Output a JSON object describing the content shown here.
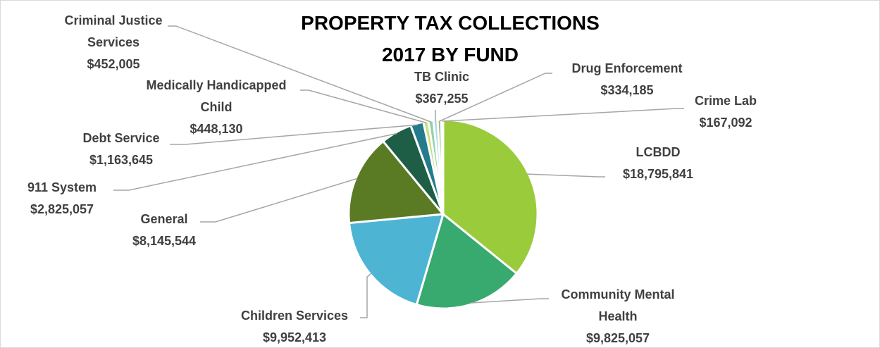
{
  "chart_data": {
    "type": "pie",
    "title": "PROPERTY TAX COLLECTIONS",
    "subtitle": "2017 BY FUND",
    "slices": [
      {
        "name": "LCBDD",
        "value": 18795841,
        "display": "$18,795,841",
        "color": "#9acb3b",
        "label_lines": [
          "LCBDD"
        ]
      },
      {
        "name": "Community Mental Health",
        "value": 9825057,
        "display": "$9,825,057",
        "color": "#38a96f",
        "label_lines": [
          "Community Mental",
          "Health"
        ]
      },
      {
        "name": "Children Services",
        "value": 9952413,
        "display": "$9,952,413",
        "color": "#4db4d3",
        "label_lines": [
          "Children Services"
        ]
      },
      {
        "name": "General",
        "value": 8145544,
        "display": "$8,145,544",
        "color": "#5a7a23",
        "label_lines": [
          "General"
        ]
      },
      {
        "name": "911 System",
        "value": 2825057,
        "display": "$2,825,057",
        "color": "#1e5e47",
        "label_lines": [
          "911 System"
        ]
      },
      {
        "name": "Debt Service",
        "value": 1163645,
        "display": "$1,163,645",
        "color": "#247b8c",
        "label_lines": [
          "Debt Service"
        ]
      },
      {
        "name": "Medically Handicapped Child",
        "value": 448130,
        "display": "$448,130",
        "color": "#c8e07a",
        "label_lines": [
          "Medically Handicapped",
          "Child"
        ]
      },
      {
        "name": "Criminal Justice Services",
        "value": 452005,
        "display": "$452,005",
        "color": "#8fd1ad",
        "label_lines": [
          "Criminal Justice",
          "Services"
        ]
      },
      {
        "name": "TB Clinic",
        "value": 367255,
        "display": "$367,255",
        "color": "#a9dbe9",
        "label_lines": [
          "TB Clinic"
        ]
      },
      {
        "name": "Drug Enforcement",
        "value": 334185,
        "display": "$334,185",
        "color": "#a6bd7b",
        "label_lines": [
          "Drug Enforcement"
        ]
      },
      {
        "name": "Crime Lab",
        "value": 167092,
        "display": "$167,092",
        "color": "#7ab5a0",
        "label_lines": [
          "Crime Lab"
        ]
      }
    ],
    "legend": "none",
    "leader_line_color": "#a6a6a6",
    "slice_border_color": "#ffffff"
  }
}
